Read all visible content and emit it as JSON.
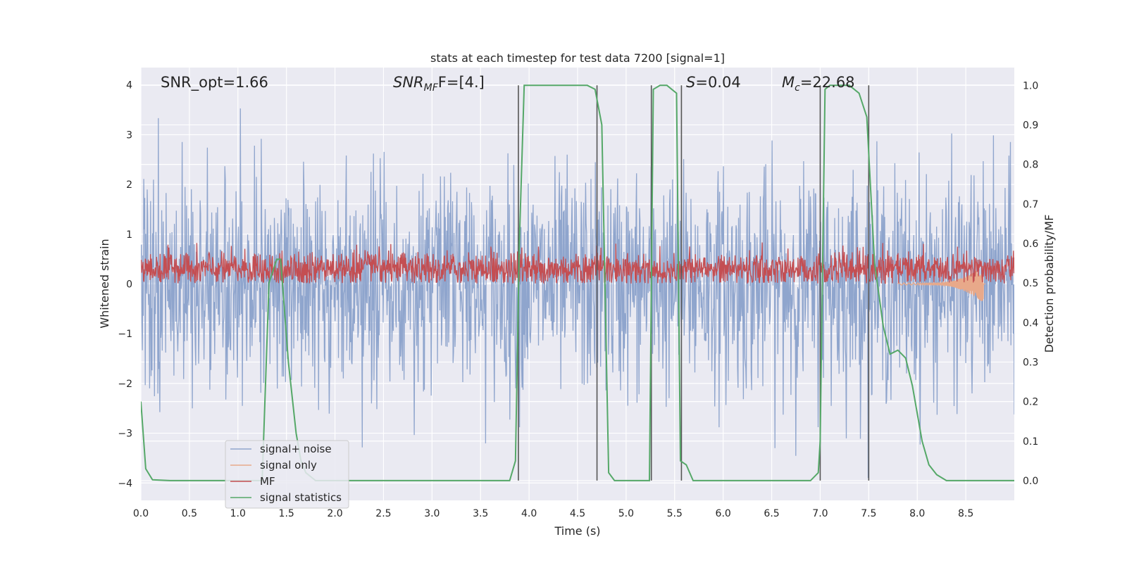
{
  "chart_data": {
    "type": "line",
    "title": "stats at each timestep for test data 7200 [signal=1]",
    "xlabel": "Time (s)",
    "ylabel_left": "Whitened strain",
    "ylabel_right": "Detection probability/MF",
    "xlim": [
      0,
      9.0
    ],
    "ylim_left": [
      -4.35,
      4.35
    ],
    "ylim_right": [
      -0.05,
      1.045
    ],
    "x_ticks": [
      "0.0",
      "0.5",
      "1.0",
      "1.5",
      "2.0",
      "2.5",
      "3.0",
      "3.5",
      "4.0",
      "4.5",
      "5.0",
      "5.5",
      "6.0",
      "6.5",
      "7.0",
      "7.5",
      "8.0",
      "8.5"
    ],
    "x_tick_values": [
      0,
      0.5,
      1.0,
      1.5,
      2.0,
      2.5,
      3.0,
      3.5,
      4.0,
      4.5,
      5.0,
      5.5,
      6.0,
      6.5,
      7.0,
      7.5,
      8.0,
      8.5
    ],
    "y_left_ticks": [
      "−4",
      "−3",
      "−2",
      "−1",
      "0",
      "1",
      "2",
      "3",
      "4"
    ],
    "y_left_tick_values": [
      -4,
      -3,
      -2,
      -1,
      0,
      1,
      2,
      3,
      4
    ],
    "y_right_ticks": [
      "0.0",
      "0.1",
      "0.2",
      "0.3",
      "0.4",
      "0.5",
      "0.6",
      "0.7",
      "0.8",
      "0.9",
      "1.0"
    ],
    "y_right_tick_values": [
      0,
      0.1,
      0.2,
      0.3,
      0.4,
      0.5,
      0.6,
      0.7,
      0.8,
      0.9,
      1.0
    ],
    "grid": true,
    "legend_placement": "lower-left",
    "annotations": {
      "snr_opt": "SNR_opt=1.66",
      "snr_mf_main": "SNR",
      "snr_mf_sub": "MF",
      "snr_mf_rest": "F=[4.]",
      "s_main": "S",
      "s_rest": "=0.04",
      "mc_main": "M",
      "mc_sub": "c",
      "mc_rest": "=22.68"
    },
    "series": [
      {
        "name": "signal+ noise",
        "color": "#8fa5cd",
        "axis": "left",
        "desc": "noisy whitened strain, roughly spanning -3.5 to 3.5"
      },
      {
        "name": "signal only",
        "color": "#e8a98a",
        "axis": "left",
        "desc": "signal waveform, near zero, chirp near t=8.3-8.7"
      },
      {
        "name": "MF",
        "color": "#c44e52",
        "axis": "left",
        "desc": "matched filter output, ~0 to 0.9"
      },
      {
        "name": "signal statistics",
        "color": "#55a868",
        "axis": "right",
        "x": [
          0,
          0.05,
          0.12,
          0.3,
          1.0,
          1.25,
          1.32,
          1.4,
          1.44,
          1.52,
          1.6,
          1.65,
          1.7,
          1.8,
          3.6,
          3.8,
          3.86,
          3.9,
          3.95,
          4.4,
          4.6,
          4.68,
          4.75,
          4.82,
          4.88,
          5.0,
          5.15,
          5.24,
          5.28,
          5.35,
          5.42,
          5.52,
          5.56,
          5.62,
          5.69,
          5.8,
          6.9,
          6.98,
          7.0,
          7.05,
          7.1,
          7.3,
          7.4,
          7.48,
          7.56,
          7.65,
          7.72,
          7.8,
          7.88,
          7.95,
          8.05,
          8.12,
          8.2,
          8.3,
          8.6,
          9.0
        ],
        "y": [
          0.2,
          0.03,
          0.002,
          0.0,
          0.0,
          0.0,
          0.5,
          0.56,
          0.56,
          0.3,
          0.12,
          0.05,
          0.02,
          0.0,
          0.0,
          0.0,
          0.05,
          0.6,
          1.0,
          1.0,
          1.0,
          0.99,
          0.9,
          0.02,
          0.0,
          0.0,
          0.0,
          0.0,
          0.99,
          1.0,
          1.0,
          0.98,
          0.05,
          0.04,
          0.0,
          0.0,
          0.0,
          0.02,
          0.1,
          0.99,
          1.0,
          1.0,
          0.98,
          0.92,
          0.55,
          0.39,
          0.32,
          0.33,
          0.31,
          0.24,
          0.1,
          0.04,
          0.015,
          0.0,
          0.0,
          0.0
        ]
      }
    ],
    "vertical_lines_x": [
      3.89,
      4.7,
      5.26,
      5.57,
      7.0,
      7.5
    ]
  }
}
